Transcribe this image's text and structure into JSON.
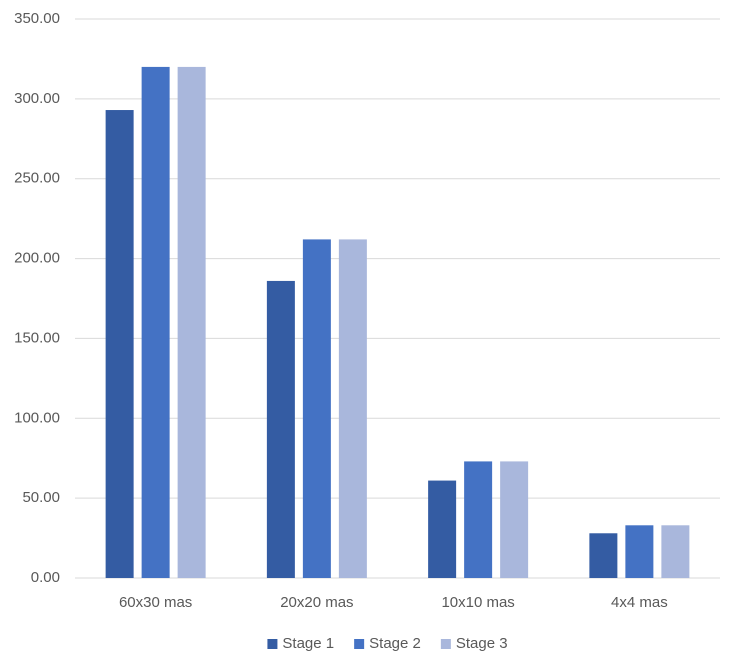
{
  "chart_data": {
    "type": "bar",
    "categories": [
      "60x30 mas",
      "20x20 mas",
      "10x10 mas",
      "4x4 mas"
    ],
    "series": [
      {
        "name": "Stage 1",
        "color": "#345ca3",
        "values": [
          293,
          186,
          61,
          28
        ]
      },
      {
        "name": "Stage 2",
        "color": "#4472c4",
        "values": [
          320,
          212,
          73,
          33
        ]
      },
      {
        "name": "Stage 3",
        "color": "#a9b7dc",
        "values": [
          320,
          212,
          73,
          33
        ]
      }
    ],
    "ylim": [
      0,
      350
    ],
    "yticks": [
      {
        "value": 0,
        "label": "0.00"
      },
      {
        "value": 50,
        "label": "50.00"
      },
      {
        "value": 100,
        "label": "100.00"
      },
      {
        "value": 150,
        "label": "150.00"
      },
      {
        "value": 200,
        "label": "200.00"
      },
      {
        "value": 250,
        "label": "250.00"
      },
      {
        "value": 300,
        "label": "300.00"
      },
      {
        "value": 350,
        "label": "350.00"
      }
    ],
    "grid": true,
    "legend": "bottom"
  }
}
